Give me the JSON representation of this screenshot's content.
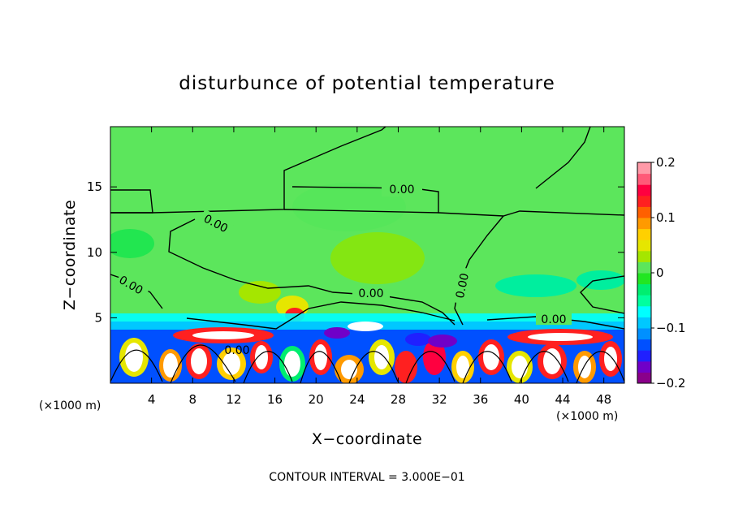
{
  "chart_data": {
    "type": "heatmap",
    "title": "disturbunce of potential temperature",
    "xlabel": "X−coordinate",
    "ylabel": "Z−coordinate",
    "x_unit_left": "(×1000 m)",
    "x_unit_right": "(×1000 m)",
    "x_ticks": [
      "4",
      "8",
      "12",
      "16",
      "20",
      "24",
      "28",
      "32",
      "36",
      "40",
      "44",
      "48"
    ],
    "y_ticks": [
      "5",
      "10",
      "15"
    ],
    "x_range": [
      0,
      50
    ],
    "y_range": [
      0,
      19.6
    ],
    "colorbar": {
      "range": [
        -0.2,
        0.2
      ],
      "tick_labels": [
        "0.2",
        "0.1",
        "0",
        "−0.1",
        "−0.2"
      ],
      "colors": [
        "#8a008a",
        "#7000c8",
        "#2020ff",
        "#0050ff",
        "#0090ff",
        "#00c8ff",
        "#00ffff",
        "#00ff9e",
        "#00ee70",
        "#22e622",
        "#5ce65c",
        "#a5e600",
        "#e6e600",
        "#ffd000",
        "#ff9a00",
        "#ff6000",
        "#ff2020",
        "#ff0040",
        "#ff5a78",
        "#ff9aa8"
      ]
    },
    "contour_labels": [
      "0.00",
      "0.00",
      "0.00",
      "0.00",
      "0.00",
      "0.00",
      "0.00"
    ],
    "footer": "CONTOUR INTERVAL = 3.000E−01"
  }
}
